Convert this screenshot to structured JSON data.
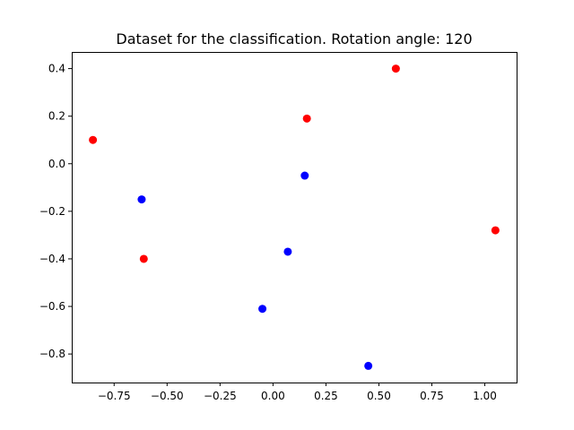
{
  "chart_data": {
    "type": "scatter",
    "title": "Dataset for the classification. Rotation angle: 120",
    "xlabel": "",
    "ylabel": "",
    "xlim": [
      -0.95,
      1.15
    ],
    "ylim": [
      -0.92,
      0.47
    ],
    "xticks": [
      -0.75,
      -0.5,
      -0.25,
      0.0,
      0.25,
      0.5,
      0.75,
      1.0
    ],
    "xtick_labels": [
      "−0.75",
      "−0.50",
      "−0.25",
      "0.00",
      "0.25",
      "0.50",
      "0.75",
      "1.00"
    ],
    "yticks": [
      -0.8,
      -0.6,
      -0.4,
      -0.2,
      0.0,
      0.2,
      0.4
    ],
    "ytick_labels": [
      "−0.8",
      "−0.6",
      "−0.4",
      "−0.2",
      "0.0",
      "0.2",
      "0.4"
    ],
    "grid": false,
    "legend": "none",
    "series": [
      {
        "color": "#ff0000",
        "points": [
          {
            "x": -0.85,
            "y": 0.1
          },
          {
            "x": 0.16,
            "y": 0.19
          },
          {
            "x": 0.58,
            "y": 0.4
          },
          {
            "x": -0.61,
            "y": -0.4
          },
          {
            "x": 1.05,
            "y": -0.28
          }
        ]
      },
      {
        "color": "#0000ff",
        "points": [
          {
            "x": -0.62,
            "y": -0.15
          },
          {
            "x": 0.15,
            "y": -0.05
          },
          {
            "x": 0.07,
            "y": -0.37
          },
          {
            "x": -0.05,
            "y": -0.61
          },
          {
            "x": 0.45,
            "y": -0.85
          }
        ]
      }
    ]
  }
}
